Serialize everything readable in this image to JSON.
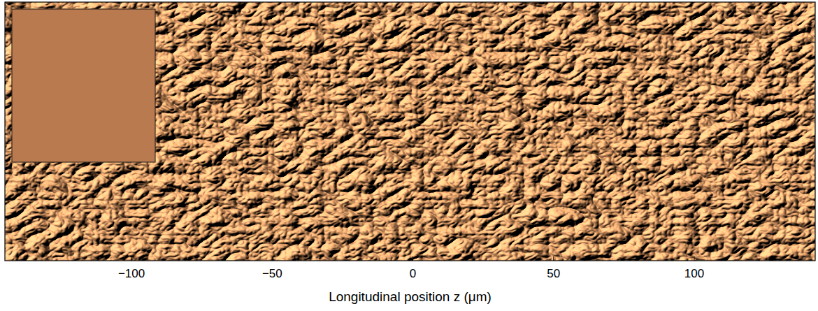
{
  "chart_data": {
    "type": "surface",
    "xlabel": "Longitudinal position z (μm)",
    "xlim": [
      -145,
      143
    ],
    "xticks": [
      {
        "value": -100,
        "label": "−100"
      },
      {
        "value": -50,
        "label": "−50"
      },
      0,
      50,
      100
    ],
    "tick_labels": "x"
  }
}
